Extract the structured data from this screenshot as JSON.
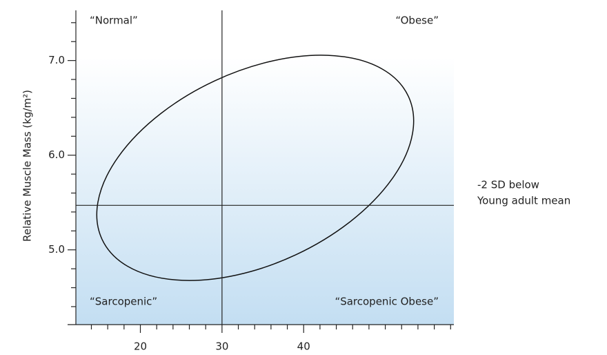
{
  "chart_data": {
    "type": "quadrant",
    "y_label": "Relative Muscle Mass (kg/m²)",
    "xlim": [
      12.1,
      58.4
    ],
    "xticks": [
      20,
      30,
      40
    ],
    "xminorticks": [
      14,
      16,
      18,
      22,
      24,
      26,
      28,
      32,
      34,
      36,
      38,
      42,
      44,
      46,
      48,
      50,
      52,
      54,
      56,
      58
    ],
    "ylim": [
      4.21,
      7.53
    ],
    "yticks": [
      {
        "value": 5,
        "label": "5.0"
      },
      {
        "value": 6,
        "label": "6.0"
      },
      {
        "value": 7,
        "label": "7.0"
      }
    ],
    "yminorticks": [
      4.4,
      4.6,
      4.8,
      5.2,
      5.4,
      5.6,
      5.8,
      6.2,
      6.4,
      6.6,
      6.8,
      7.2,
      7.4
    ],
    "vline": 30,
    "hline": 5.47,
    "hline_label": [
      "-2 SD below",
      "Young adult mean"
    ],
    "quadrants": {
      "top_left": "“Normal”",
      "top_right": "“Obese”",
      "bottom_left": "“Sarcopenic”",
      "bottom_right": "“Sarcopenic Obese”"
    }
  }
}
